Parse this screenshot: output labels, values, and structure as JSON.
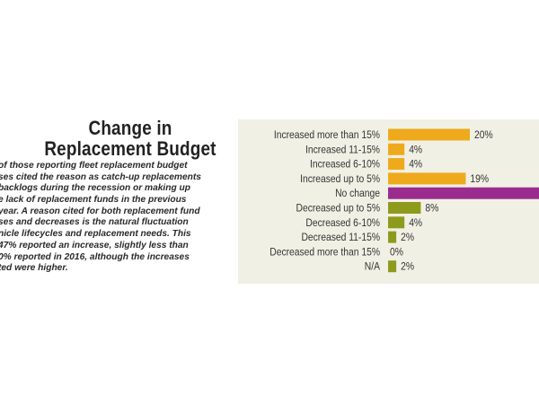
{
  "article": {
    "title_line1": "Change in",
    "title_line2": "Replacement Budget",
    "body_lines": [
      "of those reporting fleet replacement budget",
      "ses cited the reason as catch-up replacements",
      "backlogs during the recession or making up",
      "e lack of replacement funds in the previous",
      "year. A reason cited for both replacement fund",
      "ses and decreases is the natural fluctuation",
      "nicle lifecycles and replacement needs. This",
      "47% reported an increase, slightly less than",
      "0% reported in 2016, although the increases",
      "ted were higher."
    ]
  },
  "chart_data": {
    "type": "bar",
    "orientation": "horizontal",
    "categories": [
      "Increased more than 15%",
      "Increased 11-15%",
      "Increased 6-10%",
      "Increased up to 5%",
      "No change",
      "Decreased up to 5%",
      "Decreased 6-10%",
      "Decreased 11-15%",
      "Decreased more than 15%",
      "N/A"
    ],
    "values": [
      20,
      4,
      4,
      19,
      37,
      8,
      4,
      2,
      0,
      2
    ],
    "value_labels": [
      "20%",
      "4%",
      "4%",
      "19%",
      null,
      "8%",
      "4%",
      "2%",
      "0%",
      "2%"
    ],
    "colors": [
      "#eeaa1c",
      "#eeaa1c",
      "#eeaa1c",
      "#eeaa1c",
      "#9b2c8f",
      "#8e9a1c",
      "#8e9a1c",
      "#8e9a1c",
      "#8e9a1c",
      "#8e9a1c"
    ],
    "xlim": [
      0,
      40
    ],
    "grid": false
  }
}
